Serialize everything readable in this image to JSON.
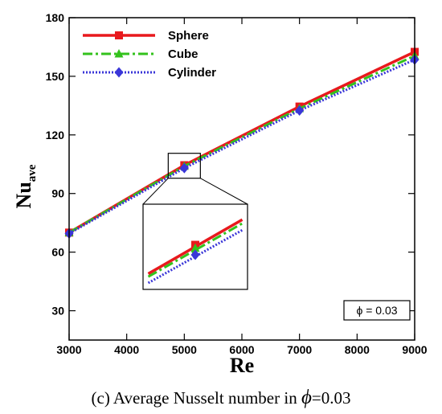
{
  "chart_data": {
    "type": "line",
    "xlabel": "Re",
    "ylabel_main": "Nu",
    "ylabel_sub": "ave",
    "xlim": [
      3000,
      9000
    ],
    "ylim": [
      15,
      180
    ],
    "xticks": [
      3000,
      4000,
      5000,
      6000,
      7000,
      8000,
      9000
    ],
    "yticks": [
      30,
      60,
      90,
      120,
      150,
      180
    ],
    "legend_position": "top-left",
    "grid": false,
    "series": [
      {
        "name": "Sphere",
        "color": "#e8191d",
        "line": "solid",
        "marker": "square",
        "x": [
          3000,
          5000,
          7000,
          9000
        ],
        "y": [
          70,
          104.5,
          134.5,
          162.5
        ]
      },
      {
        "name": "Cube",
        "color": "#33c21c",
        "line": "dash-dot",
        "marker": "triangle",
        "x": [
          3000,
          5000,
          7000,
          9000
        ],
        "y": [
          70,
          104,
          133.5,
          160.5
        ]
      },
      {
        "name": "Cylinder",
        "color": "#3a36d8",
        "line": "dotted",
        "marker": "diamond",
        "x": [
          3000,
          5000,
          7000,
          9000
        ],
        "y": [
          69.5,
          103,
          132.5,
          158.5
        ]
      }
    ],
    "annotation": "ϕ = 0.03",
    "inset": {
      "zoom_center_x": 5000,
      "zoom_center_y": 104
    }
  },
  "caption": {
    "prefix": "(c) Average Nusselt number in",
    "symbol": "ϕ",
    "suffix": "=0.03"
  }
}
